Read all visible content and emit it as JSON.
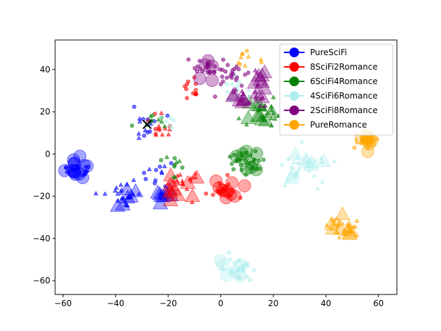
{
  "chart_data": {
    "type": "scatter",
    "title": "",
    "xlabel": "",
    "ylabel": "",
    "xlim": [
      -63,
      67
    ],
    "ylim": [
      -66.5,
      54
    ],
    "xticks": [
      -60,
      -40,
      -20,
      0,
      20,
      40,
      60
    ],
    "yticks": [
      -60,
      -40,
      -20,
      0,
      20,
      40
    ],
    "grid": false,
    "legend_position": "top-right",
    "series": [
      {
        "name": "PureSciFi",
        "color": "#0000ff",
        "clusters": [
          {
            "cx": -54,
            "cy": -7,
            "spread": 2.5,
            "count": 28,
            "marker": "circle",
            "size": "mixed"
          },
          {
            "cx": -37,
            "cy": -20,
            "spread": 3.0,
            "count": 30,
            "marker": "triangle",
            "size": "mixed"
          },
          {
            "cx": -22,
            "cy": -19,
            "spread": 1.5,
            "count": 10,
            "marker": "triangle",
            "size": "large"
          },
          {
            "cx": -28,
            "cy": 15,
            "spread": 4.0,
            "count": 14,
            "marker": "mixed",
            "size": "small"
          },
          {
            "cx": -25,
            "cy": -9,
            "spread": 3.0,
            "count": 12,
            "marker": "mixed",
            "size": "small"
          }
        ]
      },
      {
        "name": "8SciFi2Romance",
        "color": "#ff0000",
        "clusters": [
          {
            "cx": 1,
            "cy": -17,
            "spread": 2.5,
            "count": 30,
            "marker": "circle",
            "size": "mixed"
          },
          {
            "cx": -15,
            "cy": -13,
            "spread": 3.5,
            "count": 30,
            "marker": "triangle",
            "size": "mixed"
          },
          {
            "cx": -10,
            "cy": 31,
            "spread": 3.0,
            "count": 12,
            "marker": "circle",
            "size": "small"
          },
          {
            "cx": -25,
            "cy": 14,
            "spread": 3.5,
            "count": 14,
            "marker": "mixed",
            "size": "small"
          }
        ]
      },
      {
        "name": "6SciFi4Romance",
        "color": "#008000",
        "clusters": [
          {
            "cx": 10,
            "cy": -3,
            "spread": 3.0,
            "count": 32,
            "marker": "circle",
            "size": "mixed"
          },
          {
            "cx": 16,
            "cy": 20,
            "spread": 3.5,
            "count": 30,
            "marker": "triangle",
            "size": "mixed"
          },
          {
            "cx": -26,
            "cy": 16,
            "spread": 3.0,
            "count": 10,
            "marker": "mixed",
            "size": "small"
          },
          {
            "cx": -18,
            "cy": -6,
            "spread": 3.0,
            "count": 10,
            "marker": "mixed",
            "size": "small"
          }
        ]
      },
      {
        "name": "4SciFi6Romance",
        "color": "#afeeee",
        "clusters": [
          {
            "cx": 7,
            "cy": -54,
            "spread": 3.0,
            "count": 30,
            "marker": "circle",
            "size": "mixed"
          },
          {
            "cx": 33,
            "cy": -6,
            "spread": 4.5,
            "count": 30,
            "marker": "triangle",
            "size": "mixed"
          },
          {
            "cx": 5,
            "cy": 30,
            "spread": 3.0,
            "count": 14,
            "marker": "mixed",
            "size": "small"
          },
          {
            "cx": -20,
            "cy": 16,
            "spread": 2.0,
            "count": 6,
            "marker": "mixed",
            "size": "small"
          }
        ]
      },
      {
        "name": "2SciFi8Romance",
        "color": "#800080",
        "clusters": [
          {
            "cx": -8,
            "cy": 40,
            "spread": 3.0,
            "count": 20,
            "marker": "circle",
            "size": "mixed"
          },
          {
            "cx": 5,
            "cy": 38,
            "spread": 4.0,
            "count": 26,
            "marker": "circle",
            "size": "small"
          },
          {
            "cx": 12,
            "cy": 27,
            "spread": 3.0,
            "count": 24,
            "marker": "triangle",
            "size": "mixed"
          },
          {
            "cx": 16,
            "cy": 36,
            "spread": 2.0,
            "count": 8,
            "marker": "triangle",
            "size": "large"
          }
        ]
      },
      {
        "name": "PureRomance",
        "color": "#ffa500",
        "clusters": [
          {
            "cx": 55,
            "cy": 7,
            "spread": 2.0,
            "count": 30,
            "marker": "circle",
            "size": "mixed"
          },
          {
            "cx": 46,
            "cy": -35,
            "spread": 3.0,
            "count": 32,
            "marker": "triangle",
            "size": "mixed"
          },
          {
            "cx": 10,
            "cy": 45,
            "spread": 3.0,
            "count": 10,
            "marker": "mixed",
            "size": "small"
          }
        ]
      }
    ],
    "annotations": [
      {
        "type": "x-marker",
        "x": -28,
        "y": 14,
        "color": "#000000"
      }
    ]
  }
}
